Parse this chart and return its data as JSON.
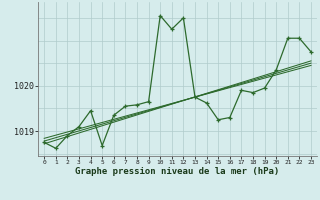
{
  "x": [
    0,
    1,
    2,
    3,
    4,
    5,
    6,
    7,
    8,
    9,
    10,
    11,
    12,
    13,
    14,
    15,
    16,
    17,
    18,
    19,
    20,
    21,
    22,
    23
  ],
  "y_main": [
    1018.75,
    1018.62,
    1018.9,
    1019.1,
    1019.45,
    1018.68,
    1019.35,
    1019.55,
    1019.58,
    1019.65,
    1021.55,
    1021.25,
    1021.5,
    1019.75,
    1019.62,
    1019.25,
    1019.3,
    1019.9,
    1019.85,
    1019.95,
    1020.35,
    1021.05,
    1021.05,
    1020.75
  ],
  "trend1_x": [
    0,
    23
  ],
  "trend1_y": [
    1018.72,
    1020.55
  ],
  "trend2_x": [
    0,
    23
  ],
  "trend2_y": [
    1018.78,
    1020.5
  ],
  "trend3_x": [
    0,
    23
  ],
  "trend3_y": [
    1018.84,
    1020.45
  ],
  "line_color": "#2d6a2d",
  "bg_color": "#d6ecec",
  "grid_color": "#b0cccc",
  "xlabel": "Graphe pression niveau de la mer (hPa)",
  "ytick_vals": [
    1019,
    1020
  ],
  "ytick_labels": [
    "1019",
    "1020"
  ],
  "ylim": [
    1018.45,
    1021.85
  ],
  "xlim": [
    -0.5,
    23.5
  ],
  "xtick_labels": [
    "0",
    "1",
    "2",
    "3",
    "4",
    "5",
    "6",
    "7",
    "8",
    "9",
    "10",
    "11",
    "12",
    "13",
    "14",
    "15",
    "16",
    "17",
    "18",
    "19",
    "20",
    "21",
    "22",
    "23"
  ]
}
